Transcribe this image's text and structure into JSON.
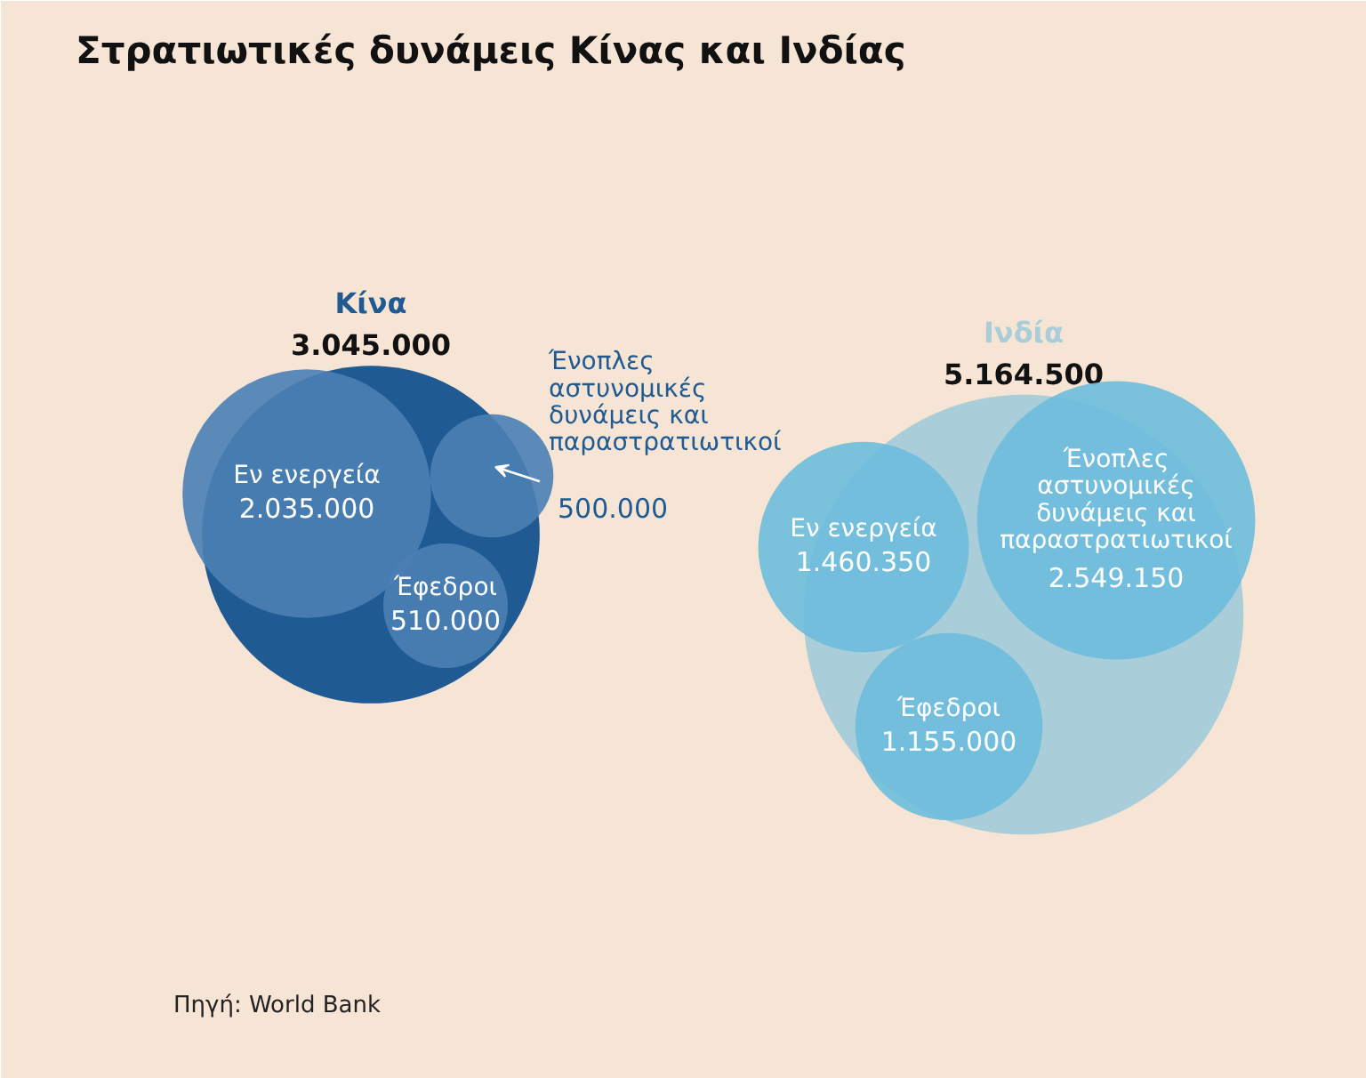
{
  "chart_data": {
    "type": "other",
    "title": "Στρατιωτικές δυνάμεις Κίνας και Ινδίας",
    "categories": [
      "Εν ενεργεία",
      "Έφεδροι",
      "Ένοπλες αστυνομικές δυνάμεις και παραστρατιωτικοί"
    ],
    "series": [
      {
        "name": "Κίνα",
        "color": "#1f5a92",
        "colors": [
          "#4b80b5",
          "#4b80b5",
          "#4b80b5"
        ],
        "values": [
          2035000,
          510000,
          500000
        ],
        "value_labels": [
          "2.035.000",
          "510.000",
          "500.000"
        ]
      },
      {
        "name": "Ινδία",
        "color": "#a9cdd9",
        "colors": [
          "#6dbcdd",
          "#6dbcdd",
          "#6dbcdd"
        ],
        "values": [
          1460350,
          1155000,
          2549150
        ],
        "value_labels": [
          "1.460.350",
          "1.155.000",
          "2.549.150"
        ]
      }
    ],
    "totals": [
      "3.045.000",
      "5.164.500"
    ],
    "annotations": [
      "Πηγή: World Bank"
    ]
  }
}
